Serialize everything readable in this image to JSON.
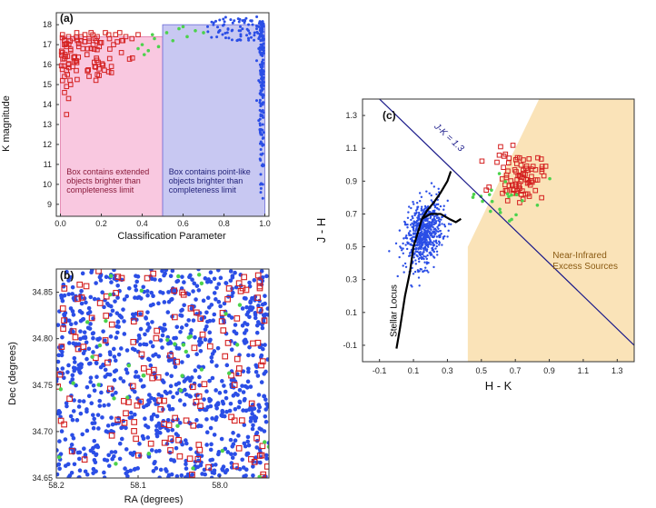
{
  "chart_data": [
    {
      "panel": "(a)",
      "type": "scatter",
      "xlabel": "Classification Parameter",
      "ylabel": "K magnitude",
      "xlim": [
        -0.02,
        1.02
      ],
      "ylim": [
        8.4,
        18.6
      ],
      "xticks": [
        "0.0",
        "0.2",
        "0.4",
        "0.6",
        "0.8",
        "1.0"
      ],
      "yticks": [
        "9",
        "10",
        "11",
        "12",
        "13",
        "14",
        "15",
        "16",
        "17",
        "18"
      ],
      "regions": [
        {
          "name": "extended-box",
          "x": [
            0.0,
            0.5
          ],
          "y_top": 17.4,
          "color": "#f9c8e0"
        },
        {
          "name": "point-like-box",
          "x": [
            0.5,
            1.0
          ],
          "y_top": 18.0,
          "color": "#c8c8f2"
        }
      ],
      "annotations": [
        {
          "lines": [
            "Box contains extended",
            "objects brighter than",
            "completeness limit"
          ],
          "color": "#8a1a3a",
          "x": 0.03,
          "y": 10.5
        },
        {
          "lines": [
            "Box contains point-like",
            "objects brighter than",
            "completeness limit"
          ],
          "color": "#22227a",
          "x": 0.53,
          "y": 10.5
        }
      ],
      "series": [
        {
          "name": "extended (red squares)",
          "marker": "square",
          "color": "#d42020",
          "points": [
            [
              0.01,
              17.5
            ],
            [
              0.02,
              17.2
            ],
            [
              0.03,
              16.9
            ],
            [
              0.01,
              16.6
            ],
            [
              0.02,
              16.3
            ],
            [
              0.04,
              16.0
            ],
            [
              0.03,
              15.7
            ],
            [
              0.02,
              15.4
            ],
            [
              0.05,
              15.0
            ],
            [
              0.02,
              14.6
            ],
            [
              0.04,
              14.3
            ],
            [
              0.03,
              13.5
            ],
            [
              0.06,
              17.3
            ],
            [
              0.08,
              17.6
            ],
            [
              0.05,
              16.7
            ],
            [
              0.07,
              16.4
            ],
            [
              0.09,
              16.9
            ],
            [
              0.06,
              15.9
            ],
            [
              0.1,
              17.2
            ],
            [
              0.12,
              17.5
            ],
            [
              0.11,
              16.8
            ],
            [
              0.14,
              17.3
            ],
            [
              0.16,
              17.0
            ],
            [
              0.13,
              16.5
            ],
            [
              0.18,
              17.4
            ],
            [
              0.2,
              17.1
            ],
            [
              0.22,
              17.6
            ],
            [
              0.24,
              17.3
            ],
            [
              0.27,
              17.5
            ],
            [
              0.3,
              17.2
            ],
            [
              0.32,
              17.4
            ],
            [
              0.35,
              17.3
            ],
            [
              0.38,
              17.5
            ],
            [
              0.15,
              17.6
            ],
            [
              0.02,
              17.0
            ],
            [
              0.04,
              17.4
            ],
            [
              0.08,
              16.1
            ],
            [
              0.01,
              15.2
            ],
            [
              0.03,
              14.9
            ],
            [
              0.26,
              17.0
            ],
            [
              0.29,
              17.6
            ],
            [
              0.19,
              16.9
            ]
          ]
        },
        {
          "name": "intermediate (green)",
          "marker": "dot",
          "color": "#4cd24c",
          "points": [
            [
              0.4,
              17.0
            ],
            [
              0.43,
              16.7
            ],
            [
              0.46,
              17.3
            ],
            [
              0.48,
              16.9
            ],
            [
              0.52,
              17.6
            ],
            [
              0.55,
              17.2
            ],
            [
              0.58,
              17.8
            ],
            [
              0.62,
              17.4
            ],
            [
              0.66,
              17.7
            ],
            [
              0.45,
              17.5
            ],
            [
              0.41,
              16.5
            ],
            [
              0.38,
              16.8
            ],
            [
              0.6,
              17.9
            ],
            [
              0.7,
              17.6
            ]
          ]
        },
        {
          "name": "point-like (blue)",
          "marker": "dot",
          "color": "#2b4ee6",
          "points": [
            [
              0.97,
              17.9
            ],
            [
              0.98,
              17.5
            ],
            [
              0.99,
              17.0
            ],
            [
              0.98,
              16.5
            ],
            [
              0.99,
              16.0
            ],
            [
              0.98,
              15.5
            ],
            [
              0.99,
              15.0
            ],
            [
              0.98,
              14.5
            ],
            [
              0.99,
              14.0
            ],
            [
              0.98,
              13.5
            ],
            [
              0.99,
              13.0
            ],
            [
              0.98,
              12.5
            ],
            [
              0.99,
              12.0
            ],
            [
              0.98,
              11.5
            ],
            [
              0.99,
              11.0
            ],
            [
              0.98,
              10.5
            ],
            [
              0.99,
              10.0
            ],
            [
              0.98,
              9.6
            ],
            [
              0.99,
              9.3
            ],
            [
              0.96,
              17.8
            ],
            [
              0.95,
              17.6
            ],
            [
              0.94,
              18.0
            ],
            [
              0.92,
              17.7
            ],
            [
              0.9,
              18.1
            ],
            [
              0.88,
              17.9
            ],
            [
              0.85,
              18.2
            ],
            [
              0.82,
              17.8
            ],
            [
              0.8,
              18.0
            ],
            [
              0.78,
              17.7
            ],
            [
              0.75,
              18.1
            ],
            [
              0.72,
              17.9
            ],
            [
              0.97,
              16.8
            ],
            [
              0.96,
              16.2
            ],
            [
              0.97,
              15.2
            ],
            [
              0.96,
              14.2
            ],
            [
              0.97,
              13.2
            ],
            [
              0.99,
              12.3
            ],
            [
              0.97,
              17.3
            ],
            [
              0.93,
              18.2
            ],
            [
              0.87,
              18.3
            ]
          ]
        }
      ]
    },
    {
      "panel": "(b)",
      "type": "scatter",
      "xlabel": "RA (degrees)",
      "ylabel": "Dec (degrees)",
      "xlim": [
        58.2,
        57.94
      ],
      "ylim": [
        34.65,
        34.875
      ],
      "xticks": [
        "58.2",
        "58.1",
        "58.0"
      ],
      "yticks": [
        "34.65",
        "34.70",
        "34.75",
        "34.80",
        "34.85"
      ],
      "series": [
        {
          "name": "point-like (blue)",
          "marker": "dot",
          "color": "#2b4ee6",
          "count": 950,
          "distribution": "uniform"
        },
        {
          "name": "extended (red squares)",
          "marker": "square",
          "color": "#d42020",
          "count": 140,
          "distribution": "uniform"
        },
        {
          "name": "intermediate (green)",
          "marker": "dot",
          "color": "#4cd24c",
          "count": 40,
          "distribution": "uniform"
        }
      ]
    },
    {
      "panel": "(c)",
      "type": "scatter",
      "xlabel": "H - K",
      "ylabel": "J - H",
      "xlim": [
        -0.2,
        1.4
      ],
      "ylim": [
        -0.2,
        1.4
      ],
      "xticks": [
        "-0.1",
        "0.1",
        "0.3",
        "0.5",
        "0.7",
        "0.9",
        "1.1",
        "1.3"
      ],
      "yticks": [
        "-0.1",
        "0.1",
        "0.3",
        "0.5",
        "0.7",
        "0.9",
        "1.1",
        "1.3"
      ],
      "lines": [
        {
          "name": "J-K = 1.3",
          "label": "J-K = 1.3",
          "x": [
            -0.2,
            1.4
          ],
          "y": [
            1.5,
            -0.1
          ],
          "color": "#1a1a8a"
        },
        {
          "name": "stellar-locus",
          "label": "Stellar Locus",
          "color": "#000000",
          "x": [
            0.0,
            0.02,
            0.05,
            0.08,
            0.1,
            0.13,
            0.15,
            0.18,
            0.22,
            0.26,
            0.3,
            0.32
          ],
          "y": [
            -0.12,
            0.0,
            0.2,
            0.35,
            0.5,
            0.6,
            0.67,
            0.72,
            0.77,
            0.83,
            0.9,
            0.96
          ]
        },
        {
          "name": "giant-branch",
          "color": "#000000",
          "x": [
            0.15,
            0.2,
            0.26,
            0.31,
            0.35,
            0.38
          ],
          "y": [
            0.67,
            0.7,
            0.7,
            0.67,
            0.65,
            0.67
          ]
        }
      ],
      "regions": [
        {
          "name": "nir-excess-region",
          "label_lines": [
            "Near-Infrared",
            "Excess Sources"
          ],
          "color": "#fae3b8"
        }
      ],
      "series": [
        {
          "name": "point-like (blue)",
          "marker": "dot",
          "color": "#2b4ee6",
          "count": 650,
          "center": [
            0.16,
            0.58
          ],
          "spread": [
            0.09,
            0.16
          ]
        },
        {
          "name": "extended (red squares)",
          "marker": "square",
          "color": "#d42020",
          "count": 85,
          "center": [
            0.72,
            0.93
          ],
          "spread": [
            0.12,
            0.12
          ]
        },
        {
          "name": "intermediate (green)",
          "marker": "dot",
          "color": "#4cd24c",
          "count": 22,
          "center": [
            0.65,
            0.8
          ],
          "spread": [
            0.2,
            0.16
          ]
        }
      ]
    }
  ]
}
